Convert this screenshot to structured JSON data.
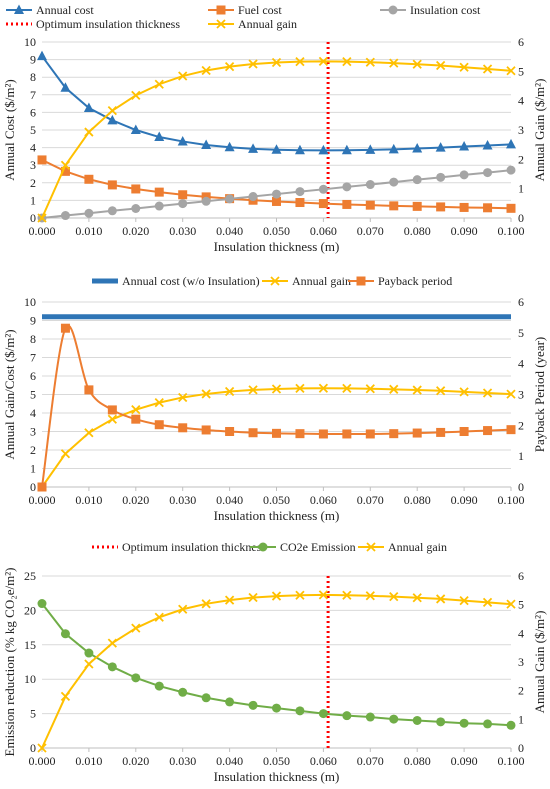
{
  "colors": {
    "annual_cost": "#2E75B6",
    "fuel_cost": "#ED7D31",
    "insulation_cost": "#A5A5A5",
    "annual_gain": "#FFC000",
    "optimum": "#FF0000",
    "annual_cost_no_insulation": "#2E75B6",
    "payback": "#ED7D31",
    "co2": "#70AD47"
  },
  "chart_data": [
    {
      "type": "line",
      "xlabel": "Insulation thickness (m)",
      "ylabel": "Annual Cost ($/m²)",
      "y2label": "Annual Gain ($/m²)",
      "xlim": [
        0,
        0.1
      ],
      "ylim": [
        0,
        10
      ],
      "y2lim": [
        0,
        6
      ],
      "grid": true,
      "legend_position": "top",
      "x": [
        0,
        0.005,
        0.01,
        0.015,
        0.02,
        0.025,
        0.03,
        0.035,
        0.04,
        0.045,
        0.05,
        0.055,
        0.06,
        0.065,
        0.07,
        0.075,
        0.08,
        0.085,
        0.09,
        0.095,
        0.1
      ],
      "x_ticks": [
        "0.000",
        "0.010",
        "0.020",
        "0.030",
        "0.040",
        "0.050",
        "0.060",
        "0.070",
        "0.080",
        "0.090",
        "0.100"
      ],
      "y_ticks": [
        "0",
        "1",
        "2",
        "3",
        "4",
        "5",
        "6",
        "7",
        "8",
        "9",
        "10"
      ],
      "y2_ticks": [
        "0",
        "1",
        "2",
        "3",
        "4",
        "5",
        "6"
      ],
      "series": [
        {
          "name": "Annual cost",
          "axis": "left",
          "marker": "triangle",
          "color_key": "annual_cost",
          "values": [
            9.2,
            7.4,
            6.25,
            5.55,
            5.0,
            4.6,
            4.35,
            4.15,
            4.02,
            3.93,
            3.88,
            3.85,
            3.84,
            3.85,
            3.87,
            3.9,
            3.95,
            4.0,
            4.06,
            4.12,
            4.18
          ]
        },
        {
          "name": "Fuel cost",
          "axis": "left",
          "marker": "square",
          "color_key": "fuel_cost",
          "values": [
            3.3,
            2.65,
            2.2,
            1.88,
            1.65,
            1.47,
            1.32,
            1.2,
            1.1,
            1.01,
            0.94,
            0.88,
            0.82,
            0.77,
            0.73,
            0.69,
            0.66,
            0.63,
            0.6,
            0.58,
            0.55
          ]
        },
        {
          "name": "Insulation cost",
          "axis": "left",
          "marker": "circle",
          "color_key": "insulation_cost",
          "values": [
            0,
            0.14,
            0.27,
            0.41,
            0.54,
            0.68,
            0.82,
            0.95,
            1.09,
            1.22,
            1.36,
            1.5,
            1.63,
            1.77,
            1.9,
            2.04,
            2.18,
            2.31,
            2.45,
            2.58,
            2.72
          ]
        },
        {
          "name": "Annual gain",
          "axis": "right",
          "marker": "x",
          "color_key": "annual_gain",
          "values": [
            0,
            1.8,
            2.93,
            3.66,
            4.18,
            4.56,
            4.84,
            5.03,
            5.16,
            5.25,
            5.3,
            5.33,
            5.34,
            5.33,
            5.31,
            5.28,
            5.24,
            5.2,
            5.14,
            5.08,
            5.02
          ]
        }
      ],
      "vlines": [
        {
          "name": "Optimum insulation thickness",
          "x": 0.061,
          "color_key": "optimum",
          "style": "dotted"
        }
      ]
    },
    {
      "type": "line",
      "xlabel": "Insulation thickness (m)",
      "ylabel": "Annual Gain/Cost ($/m²)",
      "y2label": "Payback Period (year)",
      "xlim": [
        0,
        0.1
      ],
      "ylim": [
        0,
        10
      ],
      "y2lim": [
        0,
        6
      ],
      "grid": true,
      "legend_position": "top",
      "x": [
        0,
        0.005,
        0.01,
        0.015,
        0.02,
        0.025,
        0.03,
        0.035,
        0.04,
        0.045,
        0.05,
        0.055,
        0.06,
        0.065,
        0.07,
        0.075,
        0.08,
        0.085,
        0.09,
        0.095,
        0.1
      ],
      "x_ticks": [
        "0.000",
        "0.010",
        "0.020",
        "0.030",
        "0.040",
        "0.050",
        "0.060",
        "0.070",
        "0.080",
        "0.090",
        "0.100"
      ],
      "y_ticks": [
        "0",
        "1",
        "2",
        "3",
        "4",
        "5",
        "6",
        "7",
        "8",
        "9",
        "10"
      ],
      "y2_ticks": [
        "0",
        "1",
        "2",
        "3",
        "4",
        "5",
        "6"
      ],
      "series": [
        {
          "name": "Annual cost (w/o Insulation)",
          "axis": "left",
          "marker": "none",
          "color_key": "annual_cost_no_insulation",
          "thick": true,
          "values": [
            9.2,
            9.2,
            9.2,
            9.2,
            9.2,
            9.2,
            9.2,
            9.2,
            9.2,
            9.2,
            9.2,
            9.2,
            9.2,
            9.2,
            9.2,
            9.2,
            9.2,
            9.2,
            9.2,
            9.2,
            9.2
          ]
        },
        {
          "name": "Annual gain",
          "axis": "left",
          "marker": "x",
          "color_key": "annual_gain",
          "values": [
            0,
            1.8,
            2.93,
            3.66,
            4.18,
            4.56,
            4.84,
            5.03,
            5.16,
            5.25,
            5.3,
            5.33,
            5.34,
            5.33,
            5.31,
            5.28,
            5.24,
            5.2,
            5.14,
            5.08,
            5.02
          ]
        },
        {
          "name": "Payback period",
          "axis": "right",
          "marker": "square",
          "color_key": "payback",
          "smooth": true,
          "values": [
            0,
            5.15,
            3.15,
            2.5,
            2.2,
            2.02,
            1.92,
            1.85,
            1.8,
            1.76,
            1.74,
            1.73,
            1.72,
            1.72,
            1.72,
            1.73,
            1.75,
            1.77,
            1.8,
            1.83,
            1.86
          ]
        }
      ],
      "vlines": []
    },
    {
      "type": "line",
      "xlabel": "Insulation thickness (m)",
      "ylabel": "Emission reduction  (% kg CO₂e/m²)",
      "y2label": "Annual Gain ($/m²)",
      "xlim": [
        0,
        0.1
      ],
      "ylim": [
        0,
        25
      ],
      "y2lim": [
        0,
        6
      ],
      "grid": true,
      "legend_position": "top",
      "x": [
        0,
        0.005,
        0.01,
        0.015,
        0.02,
        0.025,
        0.03,
        0.035,
        0.04,
        0.045,
        0.05,
        0.055,
        0.06,
        0.065,
        0.07,
        0.075,
        0.08,
        0.085,
        0.09,
        0.095,
        0.1
      ],
      "x_ticks": [
        "0.000",
        "0.010",
        "0.020",
        "0.030",
        "0.040",
        "0.050",
        "0.060",
        "0.070",
        "0.080",
        "0.090",
        "0.100"
      ],
      "y_ticks": [
        "0",
        "5",
        "10",
        "15",
        "20",
        "25"
      ],
      "y2_ticks": [
        "0",
        "1",
        "2",
        "3",
        "4",
        "5",
        "6"
      ],
      "series": [
        {
          "name": "CO2e Emission",
          "axis": "left",
          "marker": "circle",
          "color_key": "co2",
          "values": [
            21,
            16.6,
            13.8,
            11.8,
            10.2,
            9.0,
            8.1,
            7.3,
            6.7,
            6.2,
            5.8,
            5.4,
            5.0,
            4.7,
            4.5,
            4.2,
            4.0,
            3.8,
            3.6,
            3.5,
            3.3
          ]
        },
        {
          "name": "Annual gain",
          "axis": "right",
          "marker": "x",
          "color_key": "annual_gain",
          "values": [
            0,
            1.8,
            2.93,
            3.66,
            4.18,
            4.56,
            4.84,
            5.03,
            5.16,
            5.25,
            5.3,
            5.33,
            5.34,
            5.33,
            5.31,
            5.28,
            5.24,
            5.2,
            5.14,
            5.08,
            5.02
          ]
        }
      ],
      "vlines": [
        {
          "name": "Optimum insulation thickness",
          "x": 0.061,
          "color_key": "optimum",
          "style": "dotted"
        }
      ],
      "legend_order": [
        "vline:0",
        "series:0",
        "series:1"
      ]
    }
  ]
}
